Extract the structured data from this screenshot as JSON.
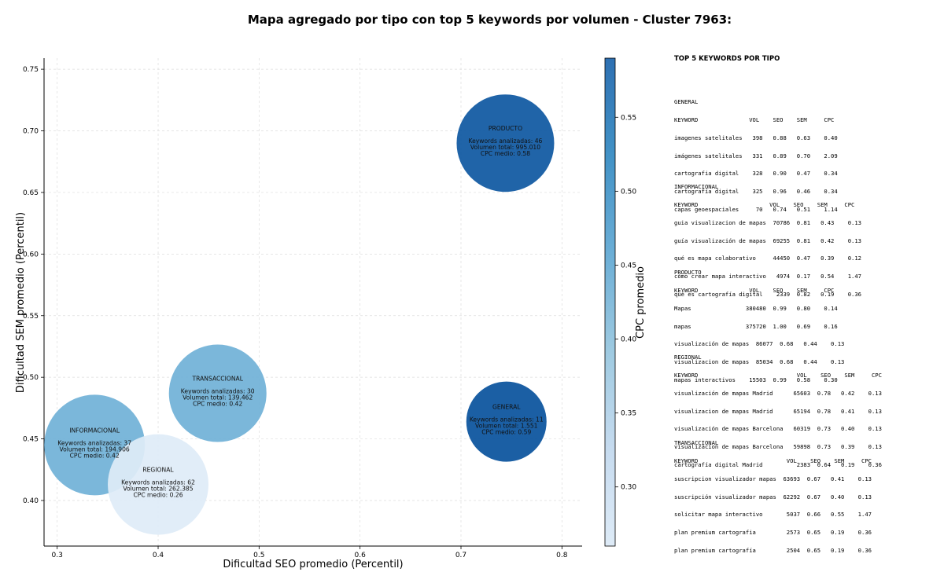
{
  "chart_data": {
    "type": "scatter",
    "title": "Mapa agregado por tipo con top 5 keywords por volumen - Cluster 7963:",
    "xlabel": "Dificultad SEO promedio (Percentil)",
    "ylabel": "Dificultad SEM promedio (Percentil)",
    "colorbar_label": "CPC promedio",
    "xlim": [
      0.287,
      0.82
    ],
    "ylim": [
      0.363,
      0.759
    ],
    "x_ticks": [
      "0.3",
      "0.4",
      "0.5",
      "0.6",
      "0.7",
      "0.8"
    ],
    "y_ticks": [
      "0.40",
      "0.45",
      "0.50",
      "0.55",
      "0.60",
      "0.65",
      "0.70",
      "0.75"
    ],
    "colorbar_ticks": [
      "0.30",
      "0.35",
      "0.40",
      "0.45",
      "0.50",
      "0.55"
    ],
    "colorbar_range": [
      0.26,
      0.59
    ],
    "colormap": [
      "#deebf7",
      "#c6dbef",
      "#9ecae1",
      "#6baed6",
      "#4292c6",
      "#2171b5",
      "#08519c"
    ],
    "grid": true,
    "points": [
      {
        "name": "PRODUCTO",
        "x": 0.744,
        "y": 0.69,
        "cpc": 0.58,
        "keywords_text": "Keywords analizadas: 46",
        "volume_text": "Volumen total: 995.010",
        "cpc_text": "CPC medio: 0.58"
      },
      {
        "name": "TRANSACCIONAL",
        "x": 0.459,
        "y": 0.487,
        "cpc": 0.42,
        "keywords_text": "Keywords analizadas: 30",
        "volume_text": "Volumen total: 139.462",
        "cpc_text": "CPC medio: 0.42"
      },
      {
        "name": "GENERAL",
        "x": 0.745,
        "y": 0.464,
        "cpc": 0.59,
        "keywords_text": "Keywords analizadas: 11",
        "volume_text": "Volumen total: 1.551",
        "cpc_text": "CPC medio: 0.59"
      },
      {
        "name": "INFORMACIONAL",
        "x": 0.337,
        "y": 0.445,
        "cpc": 0.42,
        "keywords_text": "Keywords analizadas: 37",
        "volume_text": "Volumen total: 194.906",
        "cpc_text": "CPC medio: 0.42"
      },
      {
        "name": "REGIONAL",
        "x": 0.4,
        "y": 0.413,
        "cpc": 0.26,
        "keywords_text": "Keywords analizadas: 62",
        "volume_text": "Volumen total: 262.385",
        "cpc_text": "CPC medio: 0.26"
      }
    ]
  },
  "side_panel": {
    "title": "TOP 5 KEYWORDS POR TIPO",
    "groups": [
      {
        "name": "GENERAL",
        "lines": [
          "KEYWORD               VOL    SEO    SEM     CPC",
          "imagenes satelitales   398   0.88   0.63    0.40",
          "imágenes satelitales   331   0.89   0.70    2.09",
          "cartografia digital    328   0.90   0.47    0.34",
          "cartografía digital    325   0.96   0.46    0.34",
          "capas geoespaciales     70   0.74   0.51    1.14"
        ]
      },
      {
        "name": "INFORMACIONAL",
        "lines": [
          "KEYWORD                     VOL    SEO    SEM     CPC",
          "guia visualizacion de mapas  70786  0.81   0.43    0.13",
          "guía visualización de mapas  69255  0.81   0.42    0.13",
          "qué es mapa colaborativo     44450  0.47   0.39    0.12",
          "cómo crear mapa interactivo   4974  0.17   0.54    1.47",
          "qué es cartografía digital    2339  0.82   0.19    0.36"
        ]
      },
      {
        "name": "PRODUCTO",
        "lines": [
          "KEYWORD               VOL    SEO    SEM     CPC",
          "Mapas                380480  0.99   0.80    0.14",
          "mapas                375720  1.00   0.69    0.16",
          "visualización de mapas  86077  0.68   0.44    0.13",
          "visualizacion de mapas  85034  0.68   0.44    0.13",
          "mapas interactivos    15503  0.99   0.58    0.30"
        ]
      },
      {
        "name": "REGIONAL",
        "lines": [
          "KEYWORD                             VOL    SEO    SEM     CPC",
          "visualización de mapas Madrid      65603  0.78   0.42    0.13",
          "visualizacion de mapas Madrid      65194  0.78   0.41    0.13",
          "visualización de mapas Barcelona   60319  0.73   0.40    0.13",
          "visualizacion de mapas Barcelona   59898  0.73   0.39    0.13",
          "cartografía digital Madrid          2383  0.64   0.19    0.36"
        ]
      },
      {
        "name": "TRANSACCIONAL",
        "lines": [
          "KEYWORD                          VOL    SEO    SEM     CPC",
          "suscripcion visualizador mapas  63693  0.67   0.41    0.13",
          "suscripción visualizador mapas  62292  0.67   0.40    0.13",
          "solicitar mapa interactivo       5037  0.66   0.55    1.47",
          "plan premium cartografia         2573  0.65   0.19    0.36",
          "plan premium cartografía         2504  0.65   0.19    0.36"
        ]
      }
    ]
  }
}
